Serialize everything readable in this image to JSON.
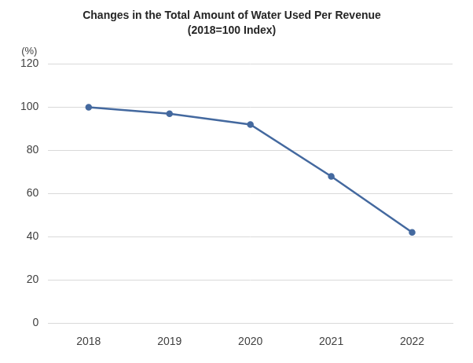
{
  "chart_data": {
    "type": "line",
    "title": "Changes in the Total Amount of Water Used Per Revenue",
    "subtitle": "(2018=100 Index)",
    "ylabel": "(%)",
    "categories": [
      "2018",
      "2019",
      "2020",
      "2021",
      "2022"
    ],
    "values": [
      100,
      97,
      92,
      68,
      42
    ],
    "color": "#44699f",
    "marker": "circle",
    "line_style": "solid",
    "ylim": [
      0,
      120
    ],
    "yticks": [
      0,
      20,
      40,
      60,
      80,
      100,
      120
    ],
    "grid": true
  }
}
